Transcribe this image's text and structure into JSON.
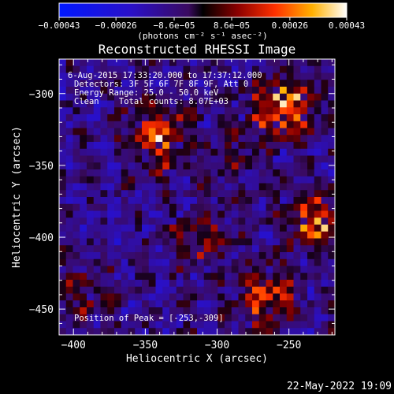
{
  "chart_data": {
    "type": "heatmap",
    "title": "Reconstructed RHESSI Image",
    "xlabel": "Heliocentric X (arcsec)",
    "ylabel": "Heliocentric Y (arcsec)",
    "xlim": [
      -410,
      -218
    ],
    "ylim": [
      -468,
      -276
    ],
    "x_ticks": [
      -400,
      -350,
      -300,
      -250
    ],
    "x_tick_labels": [
      "−400",
      "−350",
      "−300",
      "−250"
    ],
    "y_ticks": [
      -300,
      -350,
      -400,
      -450
    ],
    "y_tick_labels": [
      "−300",
      "−350",
      "−400",
      "−450"
    ],
    "colorbar": {
      "min": -0.00043,
      "max": 0.00043,
      "ticks": [
        -0.00043,
        -0.00026,
        -8.6e-05,
        8.6e-05,
        0.00026,
        0.00043
      ],
      "tick_labels": [
        "−0.00043",
        "−0.00026",
        "−8.6e−05",
        "8.6e−05",
        "0.00026",
        "0.00043"
      ],
      "unit_label": "(photons cm⁻² s⁻¹ asec⁻²)"
    },
    "sources": [
      {
        "x": -253,
        "y": -309,
        "amp": 1.0
      },
      {
        "x": -342,
        "y": -330,
        "amp": 0.85
      },
      {
        "x": -232,
        "y": -388,
        "amp": 0.8
      },
      {
        "x": -265,
        "y": -443,
        "amp": 0.8
      },
      {
        "x": -310,
        "y": -400,
        "amp": 0.45
      },
      {
        "x": -395,
        "y": -440,
        "amp": 0.35
      },
      {
        "x": -288,
        "y": -340,
        "amp": 0.3
      }
    ],
    "annotations": {
      "time_range": "6-Aug-2015 17:33:20.000 to 17:37:12.000",
      "detectors": "Detectors: 3F 5F 6F 7F 8F 9F, Att 0",
      "energy": "Energy Range: 25.0 - 50.0 keV",
      "clean": "Clean    Total counts: 8.07E+03",
      "peak": "Position of Peak = [-253,-309]"
    },
    "footer_date": "22-May-2022 19:09"
  }
}
